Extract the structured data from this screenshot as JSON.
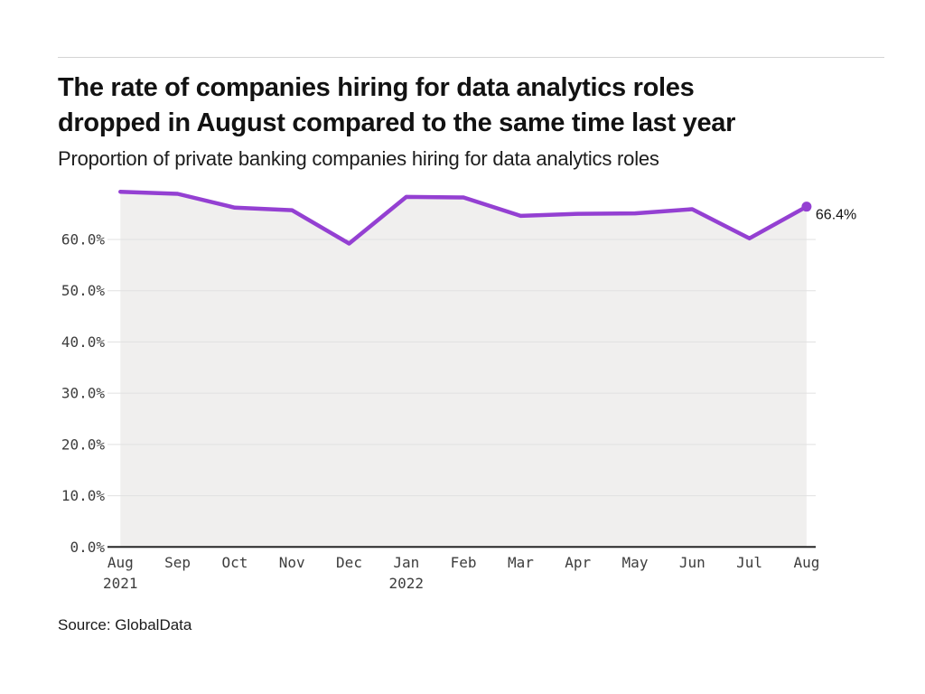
{
  "header": {
    "title_line1": "The rate of companies hiring for data analytics roles",
    "title_line2": "dropped in August compared to the same time last year",
    "subtitle": "Proportion of private banking companies hiring for data analytics roles"
  },
  "source": {
    "label": "Source: GlobalData"
  },
  "colors": {
    "line": "#9440d2",
    "marker": "#9440d2",
    "area_fill": "#f0efee",
    "gridline": "#e1e1e1",
    "axis": "#262626",
    "tick_text": "#3d3d3d",
    "end_label_text": "#121212"
  },
  "chart_data": {
    "type": "line",
    "title": "The rate of companies hiring for data analytics roles dropped in August compared to the same time last year",
    "subtitle": "Proportion of private banking companies hiring for data analytics roles",
    "categories": [
      "Aug",
      "Sep",
      "Oct",
      "Nov",
      "Dec",
      "Jan",
      "Feb",
      "Mar",
      "Apr",
      "May",
      "Jun",
      "Jul",
      "Aug"
    ],
    "category_year_labels": [
      {
        "index": 0,
        "label": "2021"
      },
      {
        "index": 5,
        "label": "2022"
      }
    ],
    "series": [
      {
        "name": "Proportion of private banking companies hiring for data analytics roles",
        "values": [
          69.3,
          68.9,
          66.2,
          65.7,
          59.2,
          68.3,
          68.2,
          64.6,
          65.0,
          65.1,
          65.9,
          60.2,
          66.4
        ]
      }
    ],
    "unit": "%",
    "y_ticks": [
      "0.0%",
      "10.0%",
      "20.0%",
      "30.0%",
      "40.0%",
      "50.0%",
      "60.0%"
    ],
    "y_tick_values": [
      0,
      10,
      20,
      30,
      40,
      50,
      60
    ],
    "ylim": [
      0,
      70.2
    ],
    "grid": true,
    "area_fill": true,
    "end_label": "66.4%",
    "legend_position": "none"
  }
}
